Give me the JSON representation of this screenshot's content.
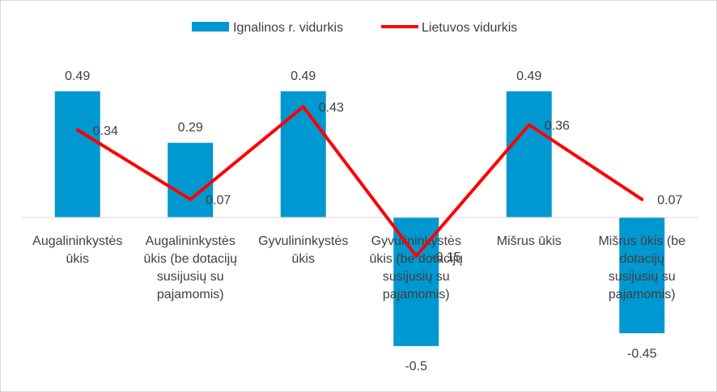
{
  "chart_data": {
    "type": "bar",
    "categories": [
      [
        "Augalininkystės",
        "ūkis"
      ],
      [
        "Augalininkystės",
        "ūkis (be dotacijų",
        "susijusių su",
        "pajamomis)"
      ],
      [
        "Gyvulininkystės",
        "ūkis"
      ],
      [
        "Gyvulininkystės",
        "ūkis (be dotacijų",
        "susijusių su",
        "pajamomis)"
      ],
      [
        "Mišrus ūkis"
      ],
      [
        "Mišrus ūkis (be",
        "dotacijų",
        "susijusių su",
        "pajamomis)"
      ]
    ],
    "series": [
      {
        "name": "Ignalinos r. vidurkis",
        "kind": "bar",
        "color": "#0098d0",
        "values": [
          0.49,
          0.29,
          0.49,
          -0.5,
          0.49,
          -0.45
        ],
        "labels": [
          "0.49",
          "0.29",
          "0.49",
          "-0.5",
          "0.49",
          "-0.45"
        ]
      },
      {
        "name": "Lietuvos vidurkis",
        "kind": "line",
        "color": "#ff0000",
        "values": [
          0.34,
          0.07,
          0.43,
          -0.15,
          0.36,
          0.07
        ],
        "labels": [
          "0.34",
          "0.07",
          "0.43",
          "-0.15",
          "0.36",
          "0.07"
        ]
      }
    ],
    "ylim": [
      -0.5,
      0.49
    ],
    "grid": false,
    "legend_position": "top"
  }
}
